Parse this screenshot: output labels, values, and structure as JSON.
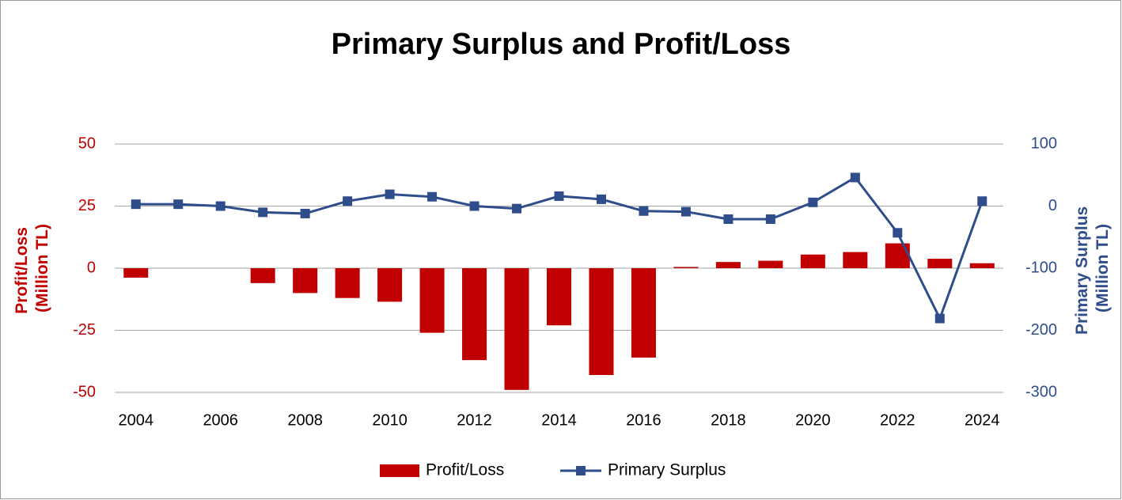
{
  "chart_data": {
    "type": "bar_line",
    "title": "Primary Surplus and Profit/Loss",
    "categories": [
      "2004",
      null,
      "2006",
      null,
      "2008",
      null,
      "2010",
      null,
      "2012",
      null,
      "2014",
      null,
      "2016",
      null,
      "2018",
      null,
      "2020",
      null,
      "2022",
      null,
      "2024"
    ],
    "ylabel": [
      "Profit/Loss",
      "(Million TL)"
    ],
    "y2label": [
      "Primary Surplus",
      "(Million TL)"
    ],
    "ylim": [
      -50,
      50
    ],
    "yticks": [
      -50,
      -25,
      0,
      25,
      50
    ],
    "y2lim": [
      -300,
      100
    ],
    "y2ticks": [
      -300,
      -200,
      -100,
      0,
      100
    ],
    "grid": true,
    "legend": "bottom",
    "series": [
      {
        "name": "Profit/Loss",
        "type": "bar",
        "color": "#c00000",
        "values": [
          -3.8,
          0,
          0,
          -6,
          -10,
          -12,
          -13.5,
          -26,
          -37,
          -49,
          -23,
          -43,
          -36,
          0.5,
          2.5,
          3,
          5.5,
          6.5,
          10,
          3.8,
          2
        ]
      },
      {
        "name": "Primary Surplus",
        "type": "line",
        "axis": "y2",
        "color": "#2e4d8a",
        "values": [
          3,
          3,
          0,
          -10,
          -12,
          8,
          19,
          15,
          0,
          -4,
          16,
          11,
          -8,
          -9,
          -21,
          -21,
          6,
          46,
          -43,
          -181,
          8
        ]
      }
    ]
  }
}
